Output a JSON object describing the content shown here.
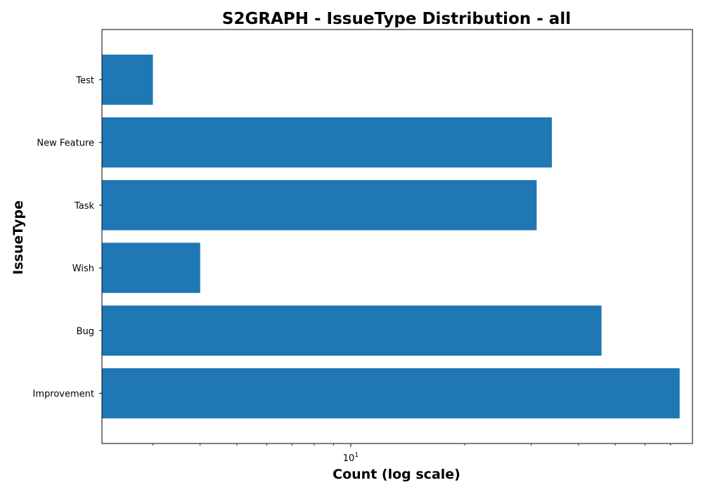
{
  "chart_data": {
    "type": "bar",
    "orientation": "horizontal",
    "title": "S2GRAPH - IssueType Distribution - all",
    "xlabel": "Count (log scale)",
    "ylabel": "IssueType",
    "xscale": "log",
    "xlim": [
      2.2,
      80
    ],
    "xtick_major": [
      {
        "value": 10,
        "base": "10",
        "exp": "1"
      }
    ],
    "xtick_minor": [
      3,
      4,
      5,
      6,
      7,
      8,
      9,
      20,
      30,
      40,
      50,
      60,
      70
    ],
    "categories": [
      "Improvement",
      "Bug",
      "Wish",
      "Task",
      "New Feature",
      "Test"
    ],
    "values": [
      74,
      46,
      4,
      31,
      34,
      3
    ],
    "bar_color": "#1f77b4",
    "grid": false,
    "legend": "none"
  }
}
